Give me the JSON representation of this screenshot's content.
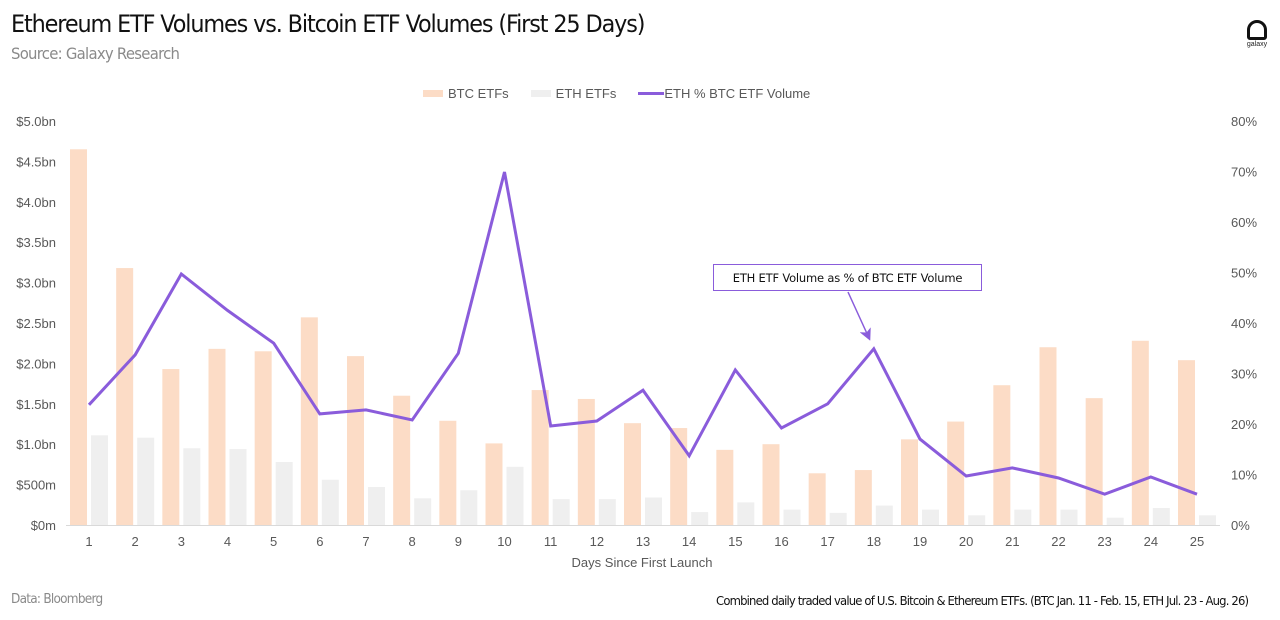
{
  "header": {
    "title": "Ethereum ETF Volumes vs. Bitcoin ETF Volumes (First 25 Days)",
    "subtitle": "Source: Galaxy Research",
    "logo_icon": "galaxy-logo-icon",
    "logo_text": "galaxy"
  },
  "legend": {
    "items": [
      {
        "label": "BTC ETFs",
        "kind": "bar",
        "color": "#fcdcc6"
      },
      {
        "label": "ETH ETFs",
        "kind": "bar",
        "color": "#efefef"
      },
      {
        "label": "ETH % BTC ETF Volume",
        "kind": "line",
        "color": "#8a5cdb"
      }
    ]
  },
  "annotation": {
    "text": "ETH ETF Volume as % of BTC ETF Volume",
    "points_to_day": 18
  },
  "footer": {
    "left": "Data: Bloomberg",
    "right": "Combined daily traded value of U.S. Bitcoin & Ethereum ETFs. (BTC Jan. 11 - Feb. 15, ETH Jul. 23 - Aug. 26)"
  },
  "chart_data": {
    "type": "bar",
    "title": "Ethereum ETF Volumes vs. Bitcoin ETF Volumes (First 25 Days)",
    "subtitle": "Source: Galaxy Research",
    "xlabel": "Days Since First Launch",
    "ylabel": "",
    "y2label": "",
    "categories": [
      "1",
      "2",
      "3",
      "4",
      "5",
      "6",
      "7",
      "8",
      "9",
      "10",
      "11",
      "12",
      "13",
      "14",
      "15",
      "16",
      "17",
      "18",
      "19",
      "20",
      "21",
      "22",
      "23",
      "24",
      "25"
    ],
    "ylim": [
      0,
      5.0
    ],
    "y_ticks": [
      0,
      0.5,
      1.0,
      1.5,
      2.0,
      2.5,
      3.0,
      3.5,
      4.0,
      4.5,
      5.0
    ],
    "y_tick_labels": [
      "$0m",
      "$500m",
      "$1.0bn",
      "$1.5bn",
      "$2.0bn",
      "$2.5bn",
      "$3.0bn",
      "$3.5bn",
      "$4.0bn",
      "$4.5bn",
      "$5.0bn"
    ],
    "y_units": "USD billions",
    "y2lim": [
      0,
      80
    ],
    "y2_ticks": [
      0,
      10,
      20,
      30,
      40,
      50,
      60,
      70,
      80
    ],
    "y2_tick_labels": [
      "0%",
      "10%",
      "20%",
      "30%",
      "40%",
      "50%",
      "60%",
      "70%",
      "80%"
    ],
    "series": [
      {
        "name": "BTC ETFs",
        "type": "bar",
        "axis": "left",
        "color": "#fcdcc6",
        "values": [
          4.65,
          3.18,
          1.93,
          2.18,
          2.15,
          2.57,
          2.09,
          1.6,
          1.29,
          1.01,
          1.67,
          1.56,
          1.26,
          1.2,
          0.93,
          1.0,
          0.64,
          0.68,
          1.06,
          1.28,
          1.73,
          2.2,
          1.57,
          2.28,
          2.04
        ]
      },
      {
        "name": "ETH ETFs",
        "type": "bar",
        "axis": "left",
        "color": "#efefef",
        "values": [
          1.11,
          1.08,
          0.95,
          0.94,
          0.78,
          0.56,
          0.47,
          0.33,
          0.43,
          0.72,
          0.32,
          0.32,
          0.34,
          0.16,
          0.28,
          0.19,
          0.15,
          0.24,
          0.19,
          0.12,
          0.19,
          0.19,
          0.09,
          0.21,
          0.12
        ]
      },
      {
        "name": "ETH % BTC ETF Volume",
        "type": "line",
        "axis": "right",
        "color": "#8a5cdb",
        "values": [
          23.8,
          33.7,
          49.7,
          42.5,
          36.0,
          22.0,
          22.8,
          20.8,
          34.0,
          69.9,
          19.6,
          20.6,
          26.7,
          13.7,
          30.7,
          19.2,
          24.0,
          34.9,
          17.0,
          9.7,
          11.3,
          9.3,
          6.1,
          9.5,
          6.1
        ]
      }
    ],
    "grid": false,
    "legend_position": "top-center"
  }
}
